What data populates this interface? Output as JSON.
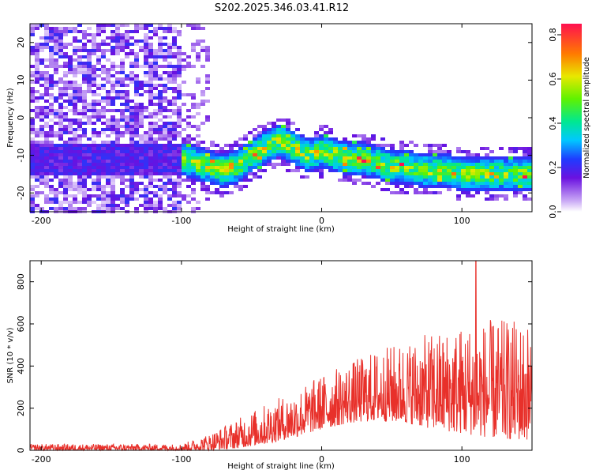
{
  "title": "S202.2025.346.03.41.R12",
  "chart_data": [
    {
      "type": "heatmap",
      "name": "spectrogram",
      "xlabel": "Height of straight line (km)",
      "ylabel": "Frequency (Hz)",
      "xlim": [
        -208,
        150
      ],
      "ylim": [
        -25,
        25
      ],
      "xticks": [
        -200,
        -100,
        0,
        100
      ],
      "yticks": [
        -20,
        -10,
        0,
        10,
        20
      ],
      "xtick_labels": [
        "-200",
        "-100",
        "0",
        "100"
      ],
      "ytick_labels": [
        "-20",
        "-10",
        "0",
        "10",
        "20"
      ],
      "ridge_x": [
        -100,
        -90,
        -80,
        -70,
        -60,
        -50,
        -40,
        -30,
        -20,
        -10,
        0,
        10,
        20,
        30,
        40,
        50,
        60,
        70,
        80,
        90,
        100,
        110,
        120,
        130,
        140,
        150
      ],
      "ridge_freq": [
        -11,
        -12,
        -13,
        -14,
        -13,
        -10,
        -8,
        -6,
        -8,
        -10,
        -9,
        -10,
        -11,
        -11,
        -12,
        -13,
        -13,
        -14,
        -14,
        -14,
        -15,
        -15,
        -15,
        -15,
        -15,
        -15
      ],
      "colorbar": {
        "label": "Normalized spectral amplitude",
        "range": [
          0.0,
          0.85
        ],
        "ticks": [
          0.0,
          0.2,
          0.4,
          0.6,
          0.8
        ],
        "tick_labels": [
          "0.0",
          "0.2",
          "0.4",
          "0.6",
          "0.8"
        ]
      }
    },
    {
      "type": "line",
      "name": "snr",
      "xlabel": "Height of straight line (km)",
      "ylabel": "SNR (10 * v/v)",
      "xlim": [
        -208,
        150
      ],
      "ylim": [
        0,
        900
      ],
      "xticks": [
        -200,
        -100,
        0,
        100
      ],
      "yticks": [
        0,
        200,
        400,
        600,
        800
      ],
      "xtick_labels": [
        "-200",
        "-100",
        "0",
        "100"
      ],
      "ytick_labels": [
        "0",
        "200",
        "400",
        "600",
        "800"
      ],
      "envelope_x": [
        -208,
        -100,
        -80,
        -60,
        -40,
        -20,
        0,
        20,
        40,
        60,
        80,
        100,
        120,
        140,
        150
      ],
      "envelope_max": [
        30,
        30,
        80,
        150,
        220,
        280,
        360,
        420,
        480,
        520,
        560,
        600,
        620,
        620,
        620
      ],
      "envelope_min": [
        0,
        0,
        0,
        10,
        30,
        60,
        100,
        130,
        140,
        130,
        100,
        80,
        60,
        50,
        50
      ],
      "spike": {
        "x": 110,
        "y": 900
      },
      "color": "#e8302a"
    }
  ]
}
